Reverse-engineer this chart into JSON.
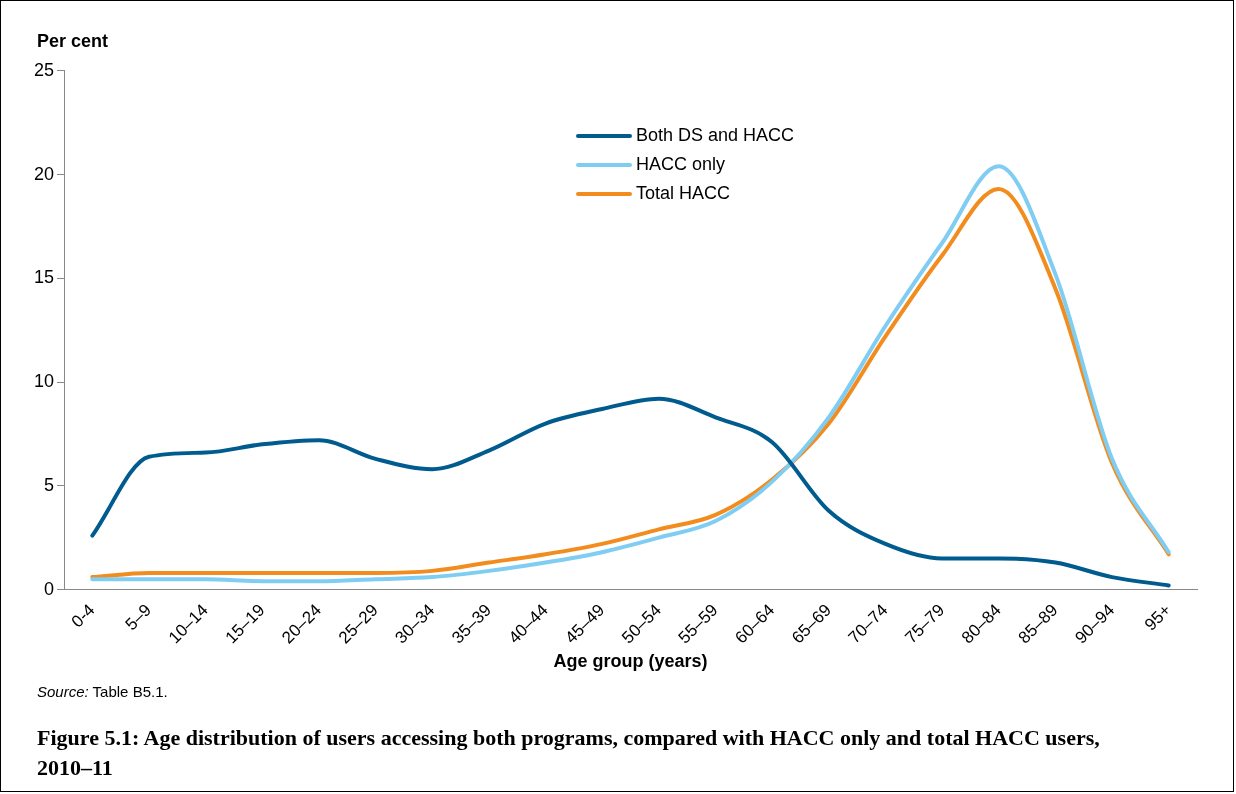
{
  "chart_data": {
    "type": "line",
    "title": "Figure 5.1: Age distribution of users accessing both programs, compared with HACC only and total HACC users, 2010–11",
    "xlabel": "Age group (years)",
    "ylabel": "Per cent",
    "annotations": [
      "Source: Table B5.1."
    ],
    "categories": [
      "0-4",
      "5–9",
      "10–14",
      "15–19",
      "20–24",
      "25–29",
      "30–34",
      "35–39",
      "40–44",
      "45–49",
      "50–54",
      "55–59",
      "60–64",
      "65–69",
      "70–74",
      "75–79",
      "80–84",
      "85–89",
      "90–94",
      "95+"
    ],
    "series": [
      {
        "name": "Both DS and HACC",
        "color": "#005b8e",
        "values": [
          2.6,
          6.4,
          6.6,
          7.0,
          7.2,
          6.3,
          5.8,
          6.7,
          8.0,
          8.7,
          9.2,
          8.3,
          7.1,
          3.8,
          2.2,
          1.5,
          1.5,
          1.3,
          0.6,
          0.2
        ]
      },
      {
        "name": "HACC only",
        "color": "#7fcdf2",
        "values": [
          0.5,
          0.5,
          0.5,
          0.4,
          0.4,
          0.5,
          0.6,
          0.9,
          1.3,
          1.8,
          2.5,
          3.3,
          5.2,
          8.3,
          12.7,
          16.7,
          20.4,
          15.2,
          6.3,
          1.8
        ]
      },
      {
        "name": "Total HACC",
        "color": "#f28c1e",
        "values": [
          0.6,
          0.8,
          0.8,
          0.8,
          0.8,
          0.8,
          0.9,
          1.3,
          1.7,
          2.2,
          2.9,
          3.6,
          5.3,
          8.0,
          12.2,
          16.1,
          19.3,
          14.5,
          6.1,
          1.7
        ]
      }
    ],
    "ylim": [
      0,
      25
    ],
    "yticks": [
      0,
      5,
      10,
      15,
      20,
      25
    ],
    "grid": false,
    "legend": "top",
    "marker": "none",
    "line_style": "solid"
  }
}
